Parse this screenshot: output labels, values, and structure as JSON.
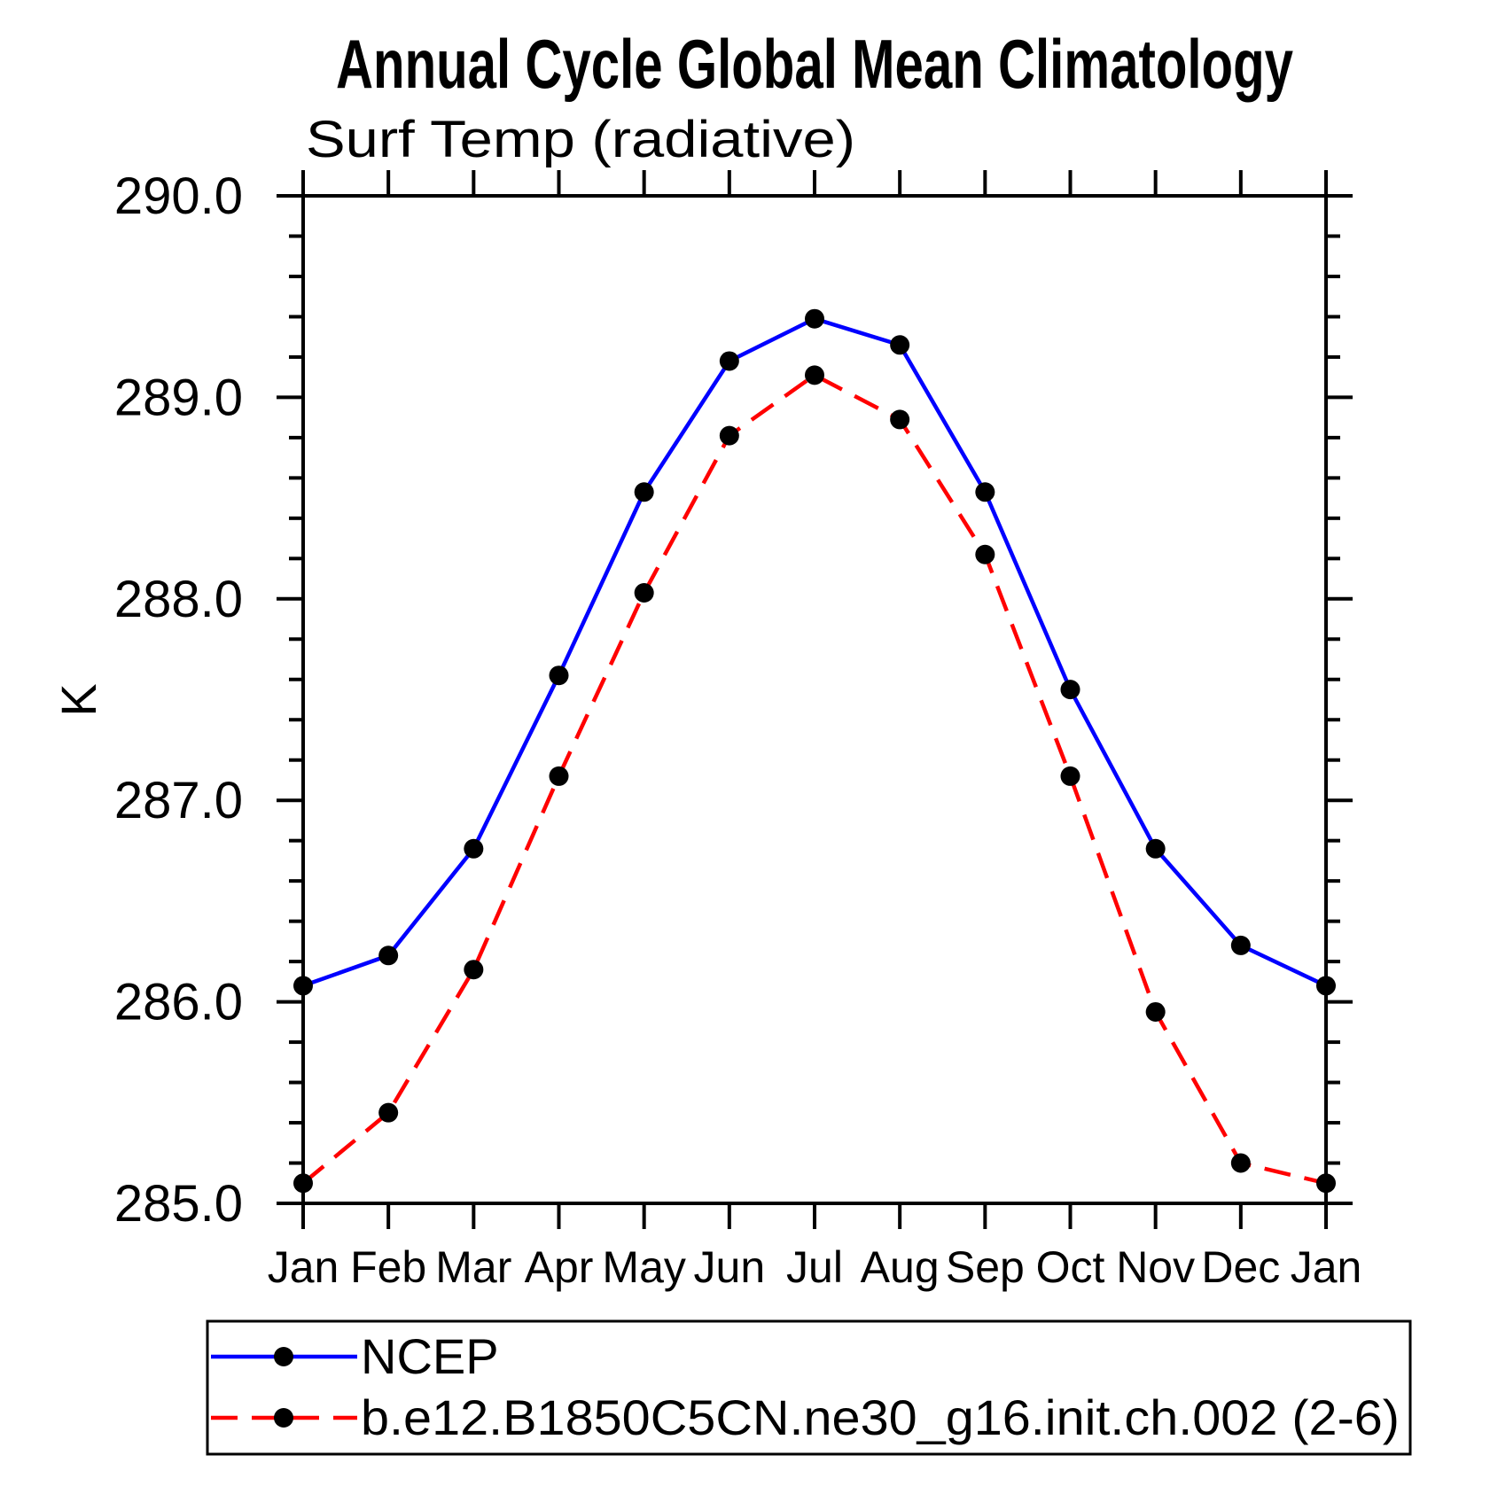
{
  "page": {
    "background": "#ffffff",
    "text_color": "#000000"
  },
  "chart_data": {
    "type": "line",
    "title": "Annual Cycle Global Mean Climatology",
    "subtitle": "Surf Temp (radiative)",
    "ylabel": "K",
    "xlabel": "",
    "categories": [
      "Jan",
      "Feb",
      "Mar",
      "Apr",
      "May",
      "Jun",
      "Jul",
      "Aug",
      "Sep",
      "Oct",
      "Nov",
      "Dec",
      "Jan"
    ],
    "ylim": [
      285.0,
      290.0
    ],
    "ytick_major_interval": 1.0,
    "ytick_minor_interval": 0.2,
    "ytick_labels": [
      "285.0",
      "286.0",
      "287.0",
      "288.0",
      "289.0",
      "290.0"
    ],
    "grid": false,
    "legend_position": "bottom",
    "marker": "filled-circle",
    "marker_color": "#000000",
    "series": [
      {
        "name": "NCEP",
        "color": "#0000ff",
        "line_style": "solid",
        "values": [
          286.08,
          286.23,
          286.76,
          287.62,
          288.53,
          289.18,
          289.39,
          289.26,
          288.53,
          287.55,
          286.76,
          286.28,
          286.08
        ]
      },
      {
        "name": "b.e12.B1850C5CN.ne30_g16.init.ch.002 (2-6)",
        "color": "#ff0000",
        "line_style": "dashed",
        "values": [
          285.1,
          285.45,
          286.16,
          287.12,
          288.03,
          288.81,
          289.11,
          288.89,
          288.22,
          287.12,
          285.95,
          285.2,
          285.1
        ]
      }
    ]
  }
}
